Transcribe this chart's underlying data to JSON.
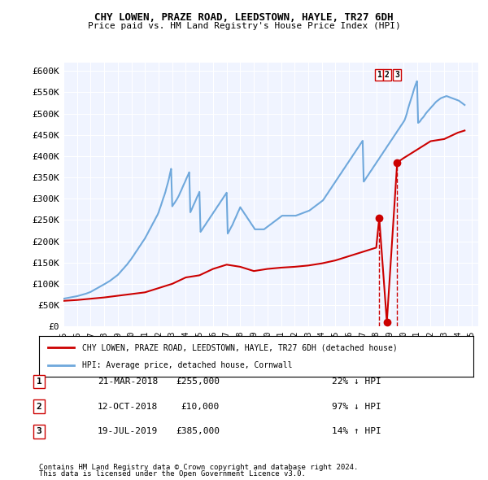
{
  "title": "CHY LOWEN, PRAZE ROAD, LEEDSTOWN, HAYLE, TR27 6DH",
  "subtitle": "Price paid vs. HM Land Registry's House Price Index (HPI)",
  "ylabel_ticks": [
    0,
    50000,
    100000,
    150000,
    200000,
    250000,
    300000,
    350000,
    400000,
    450000,
    500000,
    550000,
    600000
  ],
  "ylabel_labels": [
    "£0",
    "£50K",
    "£100K",
    "£150K",
    "£200K",
    "£250K",
    "£300K",
    "£350K",
    "£400K",
    "£450K",
    "£500K",
    "£550K",
    "£600K"
  ],
  "xlim": [
    1995.0,
    2025.5
  ],
  "ylim": [
    0,
    620000
  ],
  "hpi_color": "#6fa8dc",
  "price_color": "#cc0000",
  "transaction_color": "#cc0000",
  "dashed_color": "#cc0000",
  "background_color": "#ffffff",
  "plot_bg_color": "#f0f4ff",
  "transactions": [
    {
      "date": "21-MAR-2018",
      "year": 2018.22,
      "price": 255000,
      "label": "1",
      "pct": "22%",
      "dir": "↓"
    },
    {
      "date": "12-OCT-2018",
      "year": 2018.78,
      "price": 10000,
      "label": "2",
      "pct": "97%",
      "dir": "↓"
    },
    {
      "date": "19-JUL-2019",
      "year": 2019.54,
      "price": 385000,
      "label": "3",
      "pct": "14%",
      "dir": "↑"
    }
  ],
  "legend_property": "CHY LOWEN, PRAZE ROAD, LEEDSTOWN, HAYLE, TR27 6DH (detached house)",
  "legend_hpi": "HPI: Average price, detached house, Cornwall",
  "footnote1": "Contains HM Land Registry data © Crown copyright and database right 2024.",
  "footnote2": "This data is licensed under the Open Government Licence v3.0.",
  "hpi_x": [
    1995.0,
    1995.08,
    1995.17,
    1995.25,
    1995.33,
    1995.42,
    1995.5,
    1995.58,
    1995.67,
    1995.75,
    1995.83,
    1995.92,
    1996.0,
    1996.08,
    1996.17,
    1996.25,
    1996.33,
    1996.42,
    1996.5,
    1996.58,
    1996.67,
    1996.75,
    1996.83,
    1996.92,
    1997.0,
    1997.08,
    1997.17,
    1997.25,
    1997.33,
    1997.42,
    1997.5,
    1997.58,
    1997.67,
    1997.75,
    1997.83,
    1997.92,
    1998.0,
    1998.08,
    1998.17,
    1998.25,
    1998.33,
    1998.42,
    1998.5,
    1998.58,
    1998.67,
    1998.75,
    1998.83,
    1998.92,
    1999.0,
    1999.08,
    1999.17,
    1999.25,
    1999.33,
    1999.42,
    1999.5,
    1999.58,
    1999.67,
    1999.75,
    1999.83,
    1999.92,
    2000.0,
    2000.08,
    2000.17,
    2000.25,
    2000.33,
    2000.42,
    2000.5,
    2000.58,
    2000.67,
    2000.75,
    2000.83,
    2000.92,
    2001.0,
    2001.08,
    2001.17,
    2001.25,
    2001.33,
    2001.42,
    2001.5,
    2001.58,
    2001.67,
    2001.75,
    2001.83,
    2001.92,
    2002.0,
    2002.08,
    2002.17,
    2002.25,
    2002.33,
    2002.42,
    2002.5,
    2002.58,
    2002.67,
    2002.75,
    2002.83,
    2002.92,
    2003.0,
    2003.08,
    2003.17,
    2003.25,
    2003.33,
    2003.42,
    2003.5,
    2003.58,
    2003.67,
    2003.75,
    2003.83,
    2003.92,
    2004.0,
    2004.08,
    2004.17,
    2004.25,
    2004.33,
    2004.42,
    2004.5,
    2004.58,
    2004.67,
    2004.75,
    2004.83,
    2004.92,
    2005.0,
    2005.08,
    2005.17,
    2005.25,
    2005.33,
    2005.42,
    2005.5,
    2005.58,
    2005.67,
    2005.75,
    2005.83,
    2005.92,
    2006.0,
    2006.08,
    2006.17,
    2006.25,
    2006.33,
    2006.42,
    2006.5,
    2006.58,
    2006.67,
    2006.75,
    2006.83,
    2006.92,
    2007.0,
    2007.08,
    2007.17,
    2007.25,
    2007.33,
    2007.42,
    2007.5,
    2007.58,
    2007.67,
    2007.75,
    2007.83,
    2007.92,
    2008.0,
    2008.08,
    2008.17,
    2008.25,
    2008.33,
    2008.42,
    2008.5,
    2008.58,
    2008.67,
    2008.75,
    2008.83,
    2008.92,
    2009.0,
    2009.08,
    2009.17,
    2009.25,
    2009.33,
    2009.42,
    2009.5,
    2009.58,
    2009.67,
    2009.75,
    2009.83,
    2009.92,
    2010.0,
    2010.08,
    2010.17,
    2010.25,
    2010.33,
    2010.42,
    2010.5,
    2010.58,
    2010.67,
    2010.75,
    2010.83,
    2010.92,
    2011.0,
    2011.08,
    2011.17,
    2011.25,
    2011.33,
    2011.42,
    2011.5,
    2011.58,
    2011.67,
    2011.75,
    2011.83,
    2011.92,
    2012.0,
    2012.08,
    2012.17,
    2012.25,
    2012.33,
    2012.42,
    2012.5,
    2012.58,
    2012.67,
    2012.75,
    2012.83,
    2012.92,
    2013.0,
    2013.08,
    2013.17,
    2013.25,
    2013.33,
    2013.42,
    2013.5,
    2013.58,
    2013.67,
    2013.75,
    2013.83,
    2013.92,
    2014.0,
    2014.08,
    2014.17,
    2014.25,
    2014.33,
    2014.42,
    2014.5,
    2014.58,
    2014.67,
    2014.75,
    2014.83,
    2014.92,
    2015.0,
    2015.08,
    2015.17,
    2015.25,
    2015.33,
    2015.42,
    2015.5,
    2015.58,
    2015.67,
    2015.75,
    2015.83,
    2015.92,
    2016.0,
    2016.08,
    2016.17,
    2016.25,
    2016.33,
    2016.42,
    2016.5,
    2016.58,
    2016.67,
    2016.75,
    2016.83,
    2016.92,
    2017.0,
    2017.08,
    2017.17,
    2017.25,
    2017.33,
    2017.42,
    2017.5,
    2017.58,
    2017.67,
    2017.75,
    2017.83,
    2017.92,
    2018.0,
    2018.08,
    2018.17,
    2018.25,
    2018.33,
    2018.42,
    2018.5,
    2018.58,
    2018.67,
    2018.75,
    2018.83,
    2018.92,
    2019.0,
    2019.08,
    2019.17,
    2019.25,
    2019.33,
    2019.42,
    2019.5,
    2019.58,
    2019.67,
    2019.75,
    2019.83,
    2019.92,
    2020.0,
    2020.08,
    2020.17,
    2020.25,
    2020.33,
    2020.42,
    2020.5,
    2020.58,
    2020.67,
    2020.75,
    2020.83,
    2020.92,
    2021.0,
    2021.08,
    2021.17,
    2021.25,
    2021.33,
    2021.42,
    2021.5,
    2021.58,
    2021.67,
    2021.75,
    2021.83,
    2021.92,
    2022.0,
    2022.08,
    2022.17,
    2022.25,
    2022.33,
    2022.42,
    2022.5,
    2022.58,
    2022.67,
    2022.75,
    2022.83,
    2022.92,
    2023.0,
    2023.08,
    2023.17,
    2023.25,
    2023.33,
    2023.42,
    2023.5,
    2023.58,
    2023.67,
    2023.75,
    2023.83,
    2023.92,
    2024.0,
    2024.08,
    2024.17,
    2024.25,
    2024.33,
    2024.42,
    2024.5
  ],
  "hpi_y": [
    65000,
    65500,
    66000,
    66500,
    67000,
    67500,
    68000,
    68500,
    69000,
    69500,
    70000,
    70500,
    71000,
    71800,
    72500,
    73200,
    74000,
    74800,
    75500,
    76200,
    77000,
    78000,
    79000,
    80000,
    81000,
    82500,
    84000,
    85500,
    87000,
    88500,
    90000,
    91500,
    93000,
    94500,
    96000,
    97500,
    99000,
    100500,
    102000,
    103500,
    105000,
    107000,
    109000,
    111000,
    113000,
    115000,
    117000,
    119000,
    121000,
    124000,
    127000,
    130000,
    133000,
    136000,
    139000,
    142000,
    145000,
    148500,
    152000,
    155500,
    159000,
    163000,
    167000,
    171000,
    175000,
    179000,
    183000,
    187000,
    191000,
    195000,
    199000,
    203000,
    207000,
    212000,
    217000,
    222000,
    227000,
    232000,
    237000,
    242000,
    247000,
    252000,
    257000,
    262000,
    268000,
    276000,
    284000,
    292000,
    300000,
    308000,
    316000,
    326000,
    336000,
    346000,
    358000,
    370000,
    282000,
    286000,
    290000,
    294000,
    298000,
    303000,
    308000,
    314000,
    320000,
    326000,
    332000,
    338000,
    344000,
    350000,
    356000,
    362000,
    268000,
    274000,
    280000,
    286000,
    292000,
    298000,
    304000,
    310000,
    316000,
    222000,
    226000,
    230000,
    234000,
    238000,
    242000,
    246000,
    250000,
    254000,
    258000,
    262000,
    266000,
    270000,
    274000,
    278000,
    282000,
    286000,
    290000,
    294000,
    298000,
    302000,
    306000,
    310000,
    314000,
    218000,
    223000,
    228000,
    233000,
    238000,
    244000,
    250000,
    256000,
    262000,
    268000,
    274000,
    280000,
    276000,
    272000,
    268000,
    264000,
    260000,
    256000,
    252000,
    248000,
    244000,
    240000,
    236000,
    232000,
    228000,
    228000,
    228000,
    228000,
    228000,
    228000,
    228000,
    228000,
    228000,
    230000,
    232000,
    234000,
    236000,
    238000,
    240000,
    242000,
    244000,
    246000,
    248000,
    250000,
    252000,
    254000,
    256000,
    258000,
    260000,
    260000,
    260000,
    260000,
    260000,
    260000,
    260000,
    260000,
    260000,
    260000,
    260000,
    260000,
    260000,
    261000,
    262000,
    263000,
    264000,
    265000,
    266000,
    267000,
    268000,
    269000,
    270000,
    271000,
    272000,
    274000,
    276000,
    278000,
    280000,
    282000,
    284000,
    286000,
    288000,
    290000,
    292000,
    294000,
    296000,
    300000,
    304000,
    308000,
    312000,
    316000,
    320000,
    324000,
    328000,
    332000,
    336000,
    340000,
    344000,
    348000,
    352000,
    356000,
    360000,
    364000,
    368000,
    372000,
    376000,
    380000,
    384000,
    388000,
    392000,
    396000,
    400000,
    404000,
    408000,
    412000,
    416000,
    420000,
    424000,
    428000,
    432000,
    436000,
    340000,
    344000,
    348000,
    352000,
    356000,
    360000,
    364000,
    368000,
    372000,
    376000,
    380000,
    384000,
    388000,
    392000,
    396000,
    400000,
    404000,
    408000,
    412000,
    416000,
    420000,
    424000,
    428000,
    432000,
    436000,
    440000,
    444000,
    448000,
    452000,
    456000,
    460000,
    464000,
    468000,
    472000,
    476000,
    480000,
    484000,
    492000,
    500000,
    510000,
    520000,
    528000,
    536000,
    545000,
    554000,
    562000,
    570000,
    576000,
    478000,
    480000,
    483000,
    487000,
    490000,
    493000,
    497000,
    501000,
    504000,
    507000,
    510000,
    513000,
    516000,
    519000,
    522000,
    525000,
    528000,
    530000,
    532000,
    534000,
    536000,
    537000,
    538000,
    539000,
    540000,
    541000,
    540000,
    539000,
    538000,
    537000,
    536000,
    535000,
    534000,
    533000,
    532000,
    531000,
    530000,
    528000,
    526000,
    524000,
    522000,
    520000,
    518000,
    516000,
    514000,
    512000,
    510000,
    508000,
    506000,
    504000,
    502000,
    500000,
    498000,
    496000,
    494000
  ],
  "price_x": [
    1995.0,
    2000.5,
    2005.3,
    2010.2,
    2018.22,
    2018.78,
    2019.54
  ],
  "price_y": [
    60000,
    70000,
    80000,
    90000,
    255000,
    10000,
    385000
  ]
}
